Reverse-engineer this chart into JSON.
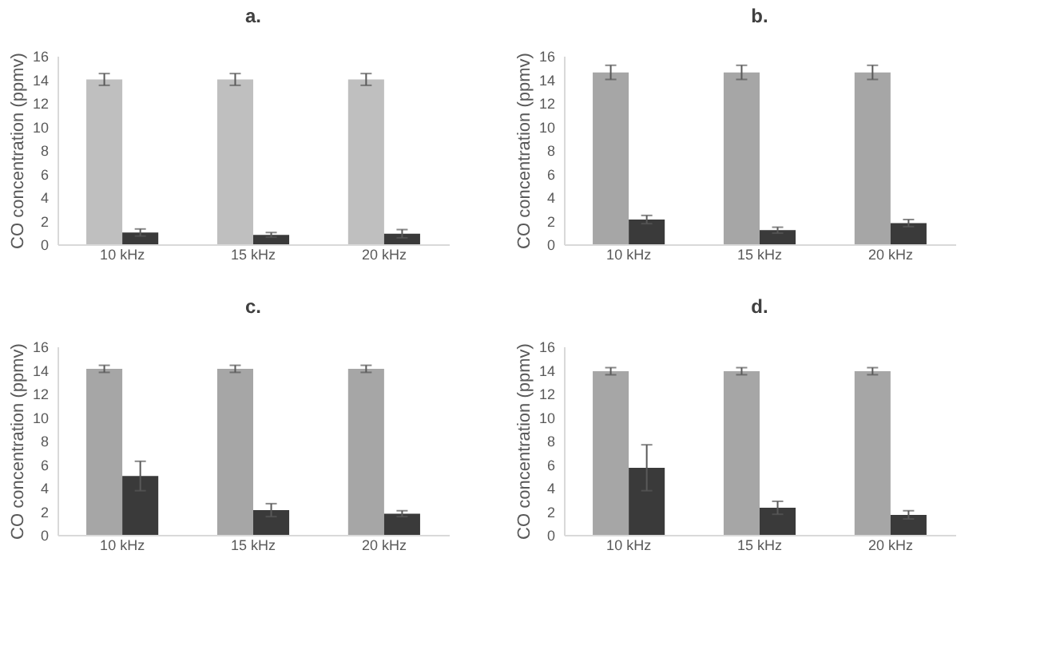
{
  "chart_data": [
    {
      "type": "bar",
      "title": "a.",
      "ylabel": "CO concentration (ppmv)",
      "categories": [
        "10 kHz",
        "15 kHz",
        "20 kHz"
      ],
      "ylim": [
        0,
        16
      ],
      "yticks": [
        0,
        2,
        4,
        6,
        8,
        10,
        12,
        14,
        16
      ],
      "grid": false,
      "legend": false,
      "series": [
        {
          "color": "#bfbfbf",
          "values": [
            14.0,
            14.0,
            14.0
          ],
          "errors": [
            0.5,
            0.5,
            0.5
          ]
        },
        {
          "color": "#3a3a3a",
          "values": [
            1.0,
            0.8,
            0.9
          ],
          "errors": [
            0.3,
            0.2,
            0.35
          ]
        }
      ]
    },
    {
      "type": "bar",
      "title": "b.",
      "ylabel": "CO concentration (ppmv)",
      "categories": [
        "10 kHz",
        "15 kHz",
        "20 kHz"
      ],
      "ylim": [
        0,
        16
      ],
      "yticks": [
        0,
        2,
        4,
        6,
        8,
        10,
        12,
        14,
        16
      ],
      "grid": false,
      "legend": false,
      "series": [
        {
          "color": "#a6a6a6",
          "values": [
            14.6,
            14.6,
            14.6
          ],
          "errors": [
            0.6,
            0.6,
            0.6
          ]
        },
        {
          "color": "#3a3a3a",
          "values": [
            2.1,
            1.2,
            1.8
          ],
          "errors": [
            0.35,
            0.25,
            0.3
          ]
        }
      ]
    },
    {
      "type": "bar",
      "title": "c.",
      "ylabel": "CO concentration (ppmv)",
      "categories": [
        "10 kHz",
        "15 kHz",
        "20 kHz"
      ],
      "ylim": [
        0,
        16
      ],
      "yticks": [
        0,
        2,
        4,
        6,
        8,
        10,
        12,
        14,
        16
      ],
      "grid": false,
      "legend": false,
      "series": [
        {
          "color": "#a6a6a6",
          "values": [
            14.1,
            14.1,
            14.1
          ],
          "errors": [
            0.3,
            0.3,
            0.3
          ]
        },
        {
          "color": "#3a3a3a",
          "values": [
            5.0,
            2.1,
            1.8
          ],
          "errors": [
            1.25,
            0.55,
            0.25
          ]
        }
      ]
    },
    {
      "type": "bar",
      "title": "d.",
      "ylabel": "CO concentration (ppmv)",
      "categories": [
        "10 kHz",
        "15 kHz",
        "20 kHz"
      ],
      "ylim": [
        0,
        16
      ],
      "yticks": [
        0,
        2,
        4,
        6,
        8,
        10,
        12,
        14,
        16
      ],
      "grid": false,
      "legend": false,
      "series": [
        {
          "color": "#a6a6a6",
          "values": [
            13.9,
            13.9,
            13.9
          ],
          "errors": [
            0.3,
            0.3,
            0.3
          ]
        },
        {
          "color": "#3a3a3a",
          "values": [
            5.7,
            2.3,
            1.7
          ],
          "errors": [
            1.95,
            0.55,
            0.35
          ]
        }
      ]
    }
  ]
}
